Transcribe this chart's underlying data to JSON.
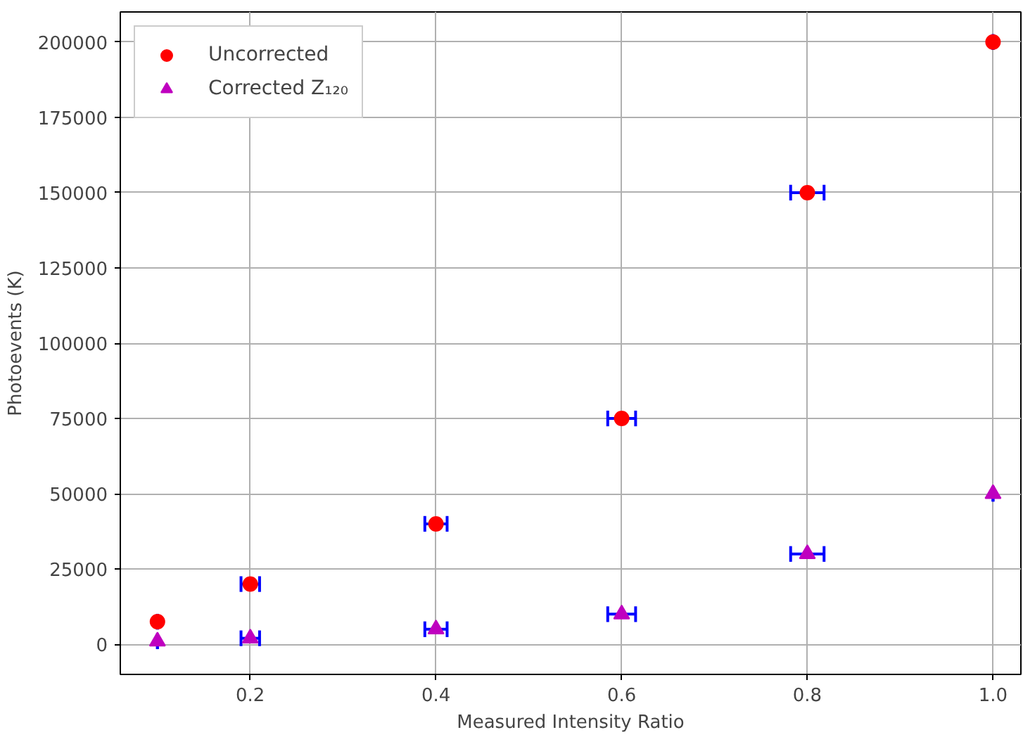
{
  "chart_data": {
    "type": "scatter",
    "xlabel": "Measured Intensity Ratio",
    "ylabel": "Photoevents (K)",
    "x": [
      0.1,
      0.2,
      0.4,
      0.6,
      0.8,
      1.0
    ],
    "series": [
      {
        "name": "Uncorrected",
        "color": "#ff0000",
        "marker": "circle",
        "values": [
          7500,
          20000,
          40000,
          75000,
          150000,
          200000
        ],
        "xerrors": [
          0,
          0.01,
          0.012,
          0.015,
          0.018,
          0
        ]
      },
      {
        "name": "Corrected Z₁₂₀",
        "color": "#bf00bf",
        "marker": "triangle",
        "values": [
          1000,
          2000,
          5000,
          10000,
          30000,
          50000
        ],
        "xerrors": [
          0,
          0.01,
          0.012,
          0.015,
          0.018,
          0
        ]
      }
    ],
    "xlim": [
      0.06,
      1.03
    ],
    "ylim": [
      -10000,
      210000
    ],
    "xticks": [
      0.2,
      0.4,
      0.6,
      0.8,
      {
        "value": 1.0,
        "label": "1.0"
      }
    ],
    "yticks": [
      0,
      25000,
      50000,
      75000,
      100000,
      125000,
      150000,
      175000,
      200000
    ],
    "grid": true,
    "legend": "top left"
  }
}
